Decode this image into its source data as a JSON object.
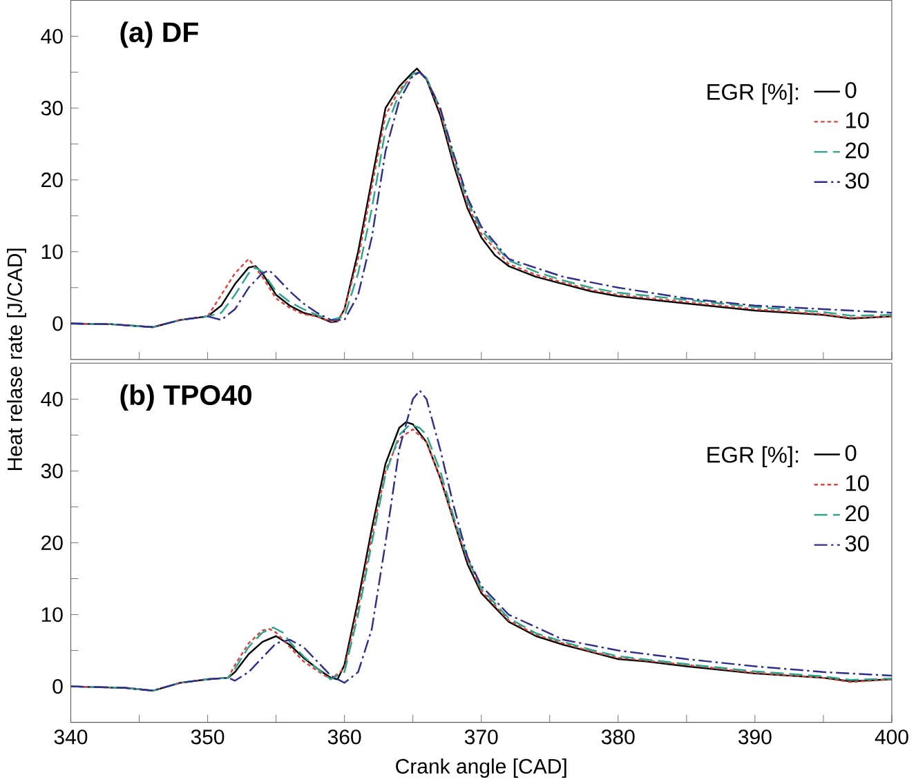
{
  "chart_data": [
    {
      "type": "line",
      "title": "(a) DF",
      "ylabel": "Heat relase rate [J/CAD]",
      "legend_title": "EGR [%]:",
      "legend": "right",
      "tick_labels": "y",
      "xlim": [
        340,
        400
      ],
      "ylim": [
        -5,
        45
      ],
      "xticks": [
        340,
        {
          "value": 345,
          "label": null
        },
        350,
        {
          "value": 355,
          "label": null
        },
        360,
        {
          "value": 365,
          "label": null
        },
        370,
        {
          "value": 375,
          "label": null
        },
        380,
        {
          "value": 385,
          "label": null
        },
        390,
        {
          "value": 395,
          "label": null
        },
        400
      ],
      "yticks": [
        0,
        {
          "value": 5,
          "label": null
        },
        10,
        {
          "value": 15,
          "label": null
        },
        20,
        {
          "value": 25,
          "label": null
        },
        30,
        {
          "value": 35,
          "label": null
        },
        40
      ],
      "series": [
        {
          "name": "0",
          "color": "#000000",
          "line_style": "solid",
          "x": [
            340,
            343,
            346,
            348,
            350,
            351,
            352,
            353,
            353.5,
            354,
            355,
            356,
            357,
            358,
            359,
            359.5,
            360,
            361,
            362,
            363,
            364,
            365,
            365.3,
            366,
            367,
            368,
            369,
            370,
            371,
            372,
            374,
            376,
            378,
            380,
            385,
            390,
            395,
            397,
            400
          ],
          "values": [
            0,
            -0.1,
            -0.5,
            0.5,
            1.0,
            2.5,
            5.5,
            7.8,
            8.0,
            7.0,
            4.0,
            2.5,
            1.5,
            1.0,
            0.2,
            0.3,
            2,
            10,
            20,
            30,
            33,
            35,
            35.5,
            34,
            29,
            22,
            16,
            12,
            9.5,
            8,
            6.5,
            5.5,
            4.5,
            3.8,
            2.8,
            1.8,
            1.2,
            0.7,
            1.0
          ]
        },
        {
          "name": "10",
          "color": "#e0413a",
          "line_style": "dotted",
          "x": [
            340,
            343,
            346,
            348,
            350,
            351,
            352,
            353,
            354,
            355,
            356,
            357,
            358,
            359,
            359.5,
            360,
            361,
            362,
            363,
            364,
            365,
            365.5,
            366,
            367,
            368,
            369,
            370,
            372,
            374,
            376,
            378,
            380,
            385,
            390,
            395,
            397,
            400
          ],
          "values": [
            0,
            -0.1,
            -0.5,
            0.5,
            1.0,
            4,
            7,
            9,
            6.5,
            3.5,
            2.2,
            1.3,
            1.0,
            0.3,
            0.3,
            2,
            9,
            19,
            29,
            32.5,
            34.5,
            35,
            34,
            29.5,
            22.5,
            16.5,
            12.5,
            8.3,
            6.8,
            5.7,
            4.7,
            4.0,
            3.0,
            2.0,
            1.3,
            0.8,
            1.0
          ]
        },
        {
          "name": "20",
          "color": "#2ca58d",
          "line_style": "dashed",
          "x": [
            340,
            343,
            346,
            348,
            350,
            351,
            352,
            353,
            353.5,
            354,
            355,
            356,
            357,
            358,
            359,
            360,
            361,
            362,
            363,
            364,
            365,
            365.5,
            366,
            367,
            368,
            369,
            370,
            372,
            374,
            376,
            378,
            380,
            385,
            390,
            395,
            397,
            400
          ],
          "values": [
            0,
            -0.1,
            -0.5,
            0.5,
            1.0,
            1.5,
            4,
            7,
            7.8,
            7.2,
            4.5,
            3,
            2,
            1.2,
            0.5,
            1,
            7,
            16,
            27,
            32,
            34.8,
            35,
            34.2,
            30,
            23,
            17,
            13,
            8.8,
            7.2,
            6.0,
            5.0,
            4.3,
            3.3,
            2.3,
            1.6,
            1.1,
            1.2
          ]
        },
        {
          "name": "30",
          "color": "#2e2e8f",
          "line_style": "dashdot",
          "x": [
            340,
            343,
            346,
            348,
            350,
            351,
            352,
            353,
            354,
            354.5,
            355,
            356,
            357,
            358,
            359,
            360,
            361,
            362,
            363,
            364,
            365,
            365.5,
            366,
            367,
            368,
            369,
            370,
            372,
            376,
            380,
            385,
            390,
            395,
            400
          ],
          "values": [
            0,
            -0.1,
            -0.5,
            0.5,
            1.0,
            0.5,
            2,
            5,
            7,
            7.4,
            6.5,
            4.5,
            2.8,
            1.5,
            0.5,
            0.5,
            4,
            12,
            24,
            31,
            34.5,
            35,
            34,
            30,
            23.5,
            17.5,
            13.5,
            9,
            6.5,
            5,
            3.5,
            2.5,
            2,
            1.5
          ]
        }
      ]
    },
    {
      "type": "line",
      "title": "(b) TPO40",
      "xlabel": "Crank angle [CAD]",
      "legend_title": "EGR [%]:",
      "legend": "right",
      "xlim": [
        340,
        400
      ],
      "ylim": [
        -5,
        45
      ],
      "xticks": [
        340,
        {
          "value": 345,
          "label": null
        },
        350,
        {
          "value": 355,
          "label": null
        },
        360,
        {
          "value": 365,
          "label": null
        },
        370,
        {
          "value": 375,
          "label": null
        },
        380,
        {
          "value": 385,
          "label": null
        },
        390,
        {
          "value": 395,
          "label": null
        },
        400
      ],
      "yticks": [
        0,
        {
          "value": 5,
          "label": null
        },
        10,
        {
          "value": 15,
          "label": null
        },
        20,
        {
          "value": 25,
          "label": null
        },
        30,
        {
          "value": 35,
          "label": null
        },
        40
      ],
      "series": [
        {
          "name": "0",
          "color": "#000000",
          "line_style": "solid",
          "x": [
            340,
            344,
            346,
            348,
            350,
            351.5,
            352,
            353,
            354,
            355,
            356,
            357,
            358,
            359,
            359.5,
            360,
            361,
            362,
            363,
            364,
            364.5,
            365,
            366,
            367,
            368,
            369,
            370,
            372,
            374,
            376,
            378,
            380,
            382,
            385,
            390,
            395,
            397,
            400
          ],
          "values": [
            0,
            -0.2,
            -0.6,
            0.5,
            1,
            1.2,
            2,
            4.5,
            6.2,
            7,
            5.8,
            4,
            2.5,
            1.2,
            1,
            3,
            12,
            22,
            31,
            36,
            36.8,
            36.5,
            34,
            29,
            23,
            17,
            13,
            9,
            7,
            5.8,
            4.8,
            3.8,
            3.5,
            2.8,
            1.8,
            1.2,
            0.7,
            1.0
          ]
        },
        {
          "name": "10",
          "color": "#e0413a",
          "line_style": "dotted",
          "x": [
            340,
            344,
            346,
            348,
            350,
            351.5,
            352,
            353,
            354,
            354.5,
            355,
            356,
            357,
            358,
            359,
            360,
            361,
            362,
            363,
            364,
            365,
            366,
            367,
            368,
            369,
            370,
            372,
            374,
            376,
            378,
            380,
            385,
            390,
            395,
            397,
            400
          ],
          "values": [
            0,
            -0.2,
            -0.6,
            0.5,
            1,
            1.2,
            3,
            6,
            7.8,
            8,
            7.5,
            5.5,
            3.5,
            2.2,
            1,
            2.5,
            11,
            21,
            30,
            34.5,
            35.8,
            34,
            29,
            23,
            17.5,
            13.3,
            9.2,
            7.2,
            6,
            4.9,
            4,
            3,
            1.9,
            1.2,
            0.6,
            1.0
          ]
        },
        {
          "name": "20",
          "color": "#2ca58d",
          "line_style": "dashed",
          "x": [
            340,
            344,
            346,
            348,
            350,
            351.5,
            352,
            353,
            354,
            354.8,
            355.5,
            356,
            357,
            358,
            359,
            360,
            361,
            362,
            363,
            364,
            364.8,
            365.5,
            366,
            367,
            368,
            369,
            370,
            372,
            374,
            376,
            378,
            380,
            385,
            390,
            395,
            397,
            400
          ],
          "values": [
            0,
            -0.2,
            -0.6,
            0.5,
            1,
            1.2,
            2.5,
            5.5,
            7.5,
            8.2,
            7.5,
            6.2,
            4.2,
            2.5,
            1,
            2,
            10,
            20,
            29.5,
            35,
            36.5,
            36,
            35,
            30,
            23.5,
            17.8,
            13.6,
            9.5,
            7.4,
            6.2,
            5.1,
            4.2,
            3.1,
            2.1,
            1.4,
            0.9,
            1.1
          ]
        },
        {
          "name": "30",
          "color": "#2e2e8f",
          "line_style": "dashdot",
          "x": [
            340,
            344,
            346,
            348,
            350,
            351.5,
            352,
            353,
            354,
            355,
            356,
            357,
            358,
            359,
            360,
            361,
            362,
            363,
            364,
            365,
            365.5,
            366,
            367,
            368,
            369,
            370,
            372,
            376,
            380,
            385,
            390,
            395,
            400
          ],
          "values": [
            0,
            -0.2,
            -0.6,
            0.5,
            1,
            1.2,
            0.8,
            2,
            4,
            6,
            6.5,
            5.5,
            3.5,
            1.5,
            0.5,
            2,
            8,
            20,
            33,
            40,
            41.2,
            40,
            33,
            25,
            18,
            14,
            10,
            6.5,
            5,
            3.8,
            2.8,
            2,
            1.5
          ]
        }
      ]
    }
  ]
}
